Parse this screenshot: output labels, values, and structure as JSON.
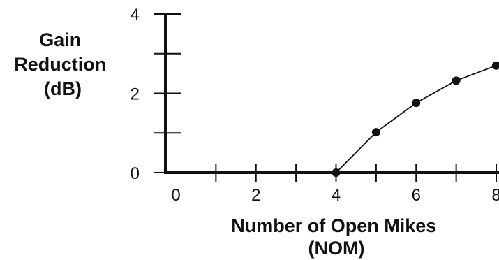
{
  "chart_data": {
    "type": "line",
    "x": [
      4,
      5,
      6,
      7,
      8
    ],
    "y": [
      0,
      1.02,
      1.76,
      2.32,
      2.7
    ],
    "xlabel_lines": [
      "Number of Open Mikes",
      "(NOM)"
    ],
    "ylabel_lines": [
      "Gain",
      "Reduction",
      "(dB)"
    ],
    "xlim": [
      0,
      8.1
    ],
    "ylim": [
      0,
      4
    ],
    "x_ticks": [
      0,
      1,
      2,
      3,
      4,
      5,
      6,
      7,
      8
    ],
    "x_tick_labels": [
      {
        "value": 0,
        "label": "0"
      },
      {
        "value": 2,
        "label": "2"
      },
      {
        "value": 4,
        "label": "4"
      },
      {
        "value": 6,
        "label": "6"
      },
      {
        "value": 8,
        "label": "8"
      }
    ],
    "y_ticks": [
      0,
      1,
      2,
      3,
      4
    ],
    "y_tick_labels": [
      {
        "value": 0,
        "label": "0"
      },
      {
        "value": 2,
        "label": "2"
      },
      {
        "value": 4,
        "label": "4"
      }
    ],
    "grid": false,
    "legend": "none",
    "colors": {
      "line": "#111111",
      "axis": "#111111",
      "marker": "#111111"
    }
  }
}
